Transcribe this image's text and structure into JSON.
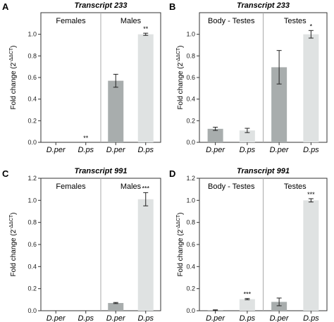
{
  "chart_data": [
    {
      "type": "bar",
      "panel_letter": "A",
      "title": "Transcript 233",
      "ylabel_main": "Fold change (2",
      "ylabel_sup": "-ΔΔCT",
      "ylabel_close": ")",
      "ylim": [
        0,
        1.2
      ],
      "yticks": [
        "0.0",
        "0.2",
        "0.4",
        "0.6",
        "0.8",
        "1.0"
      ],
      "groups": [
        "Females",
        "Males"
      ],
      "categories": [
        "D.per",
        "D.ps",
        "D.per",
        "D.ps"
      ],
      "values": [
        0,
        0,
        0.57,
        1.0
      ],
      "errors": [
        0,
        0,
        0.06,
        0.01
      ],
      "significance": [
        "",
        "**",
        "",
        "**"
      ],
      "colors": [
        "#a8adad",
        "#dfe2e2",
        "#a8adad",
        "#dfe2e2"
      ]
    },
    {
      "type": "bar",
      "panel_letter": "B",
      "title": "Transcript 233",
      "ylabel_main": "Fold change (2",
      "ylabel_sup": "-ΔΔCT",
      "ylabel_close": ")",
      "ylim": [
        0,
        1.2
      ],
      "yticks": [
        "0.0",
        "0.2",
        "0.4",
        "0.6",
        "0.8",
        "1.0"
      ],
      "groups": [
        "Body - Testes",
        "Testes"
      ],
      "categories": [
        "D.per",
        "D.ps",
        "D.per",
        "D.ps"
      ],
      "values": [
        0.125,
        0.11,
        0.695,
        1.0
      ],
      "errors": [
        0.015,
        0.02,
        0.155,
        0.035
      ],
      "significance": [
        "",
        "",
        "",
        "*"
      ],
      "colors": [
        "#a8adad",
        "#dfe2e2",
        "#a8adad",
        "#dfe2e2"
      ]
    },
    {
      "type": "bar",
      "panel_letter": "C",
      "title": "Transcript 991",
      "ylabel_main": "Fold change (2",
      "ylabel_sup": "-ΔΔCT",
      "ylabel_close": ")",
      "ylim": [
        0,
        1.2
      ],
      "yticks": [
        "0.0",
        "0.2",
        "0.4",
        "0.6",
        "0.8",
        "1.0",
        "1.2"
      ],
      "groups": [
        "Females",
        "Males"
      ],
      "categories": [
        "D.per",
        "D.ps",
        "D.per",
        "D.ps"
      ],
      "values": [
        0,
        0,
        0.07,
        1.01
      ],
      "errors": [
        0,
        0,
        0.005,
        0.06
      ],
      "significance": [
        "",
        "",
        "",
        "***"
      ],
      "colors": [
        "#a8adad",
        "#dfe2e2",
        "#a8adad",
        "#dfe2e2"
      ]
    },
    {
      "type": "bar",
      "panel_letter": "D",
      "title": "Transcript 991",
      "ylabel_main": "Fold change (2",
      "ylabel_sup": "-ΔΔCT",
      "ylabel_close": ")",
      "ylim": [
        0,
        1.2
      ],
      "yticks": [
        "0.0",
        "0.2",
        "0.4",
        "0.6",
        "0.8",
        "1.0",
        "1.2"
      ],
      "groups": [
        "Body - Testes",
        "Testes"
      ],
      "categories": [
        "D.per",
        "D.ps",
        "D.per",
        "D.ps"
      ],
      "values": [
        0.005,
        0.105,
        0.08,
        1.0
      ],
      "errors": [
        0.003,
        0.006,
        0.035,
        0.015
      ],
      "significance": [
        "",
        "***",
        "",
        "***"
      ],
      "colors": [
        "#a8adad",
        "#dfe2e2",
        "#a8adad",
        "#dfe2e2"
      ]
    }
  ]
}
